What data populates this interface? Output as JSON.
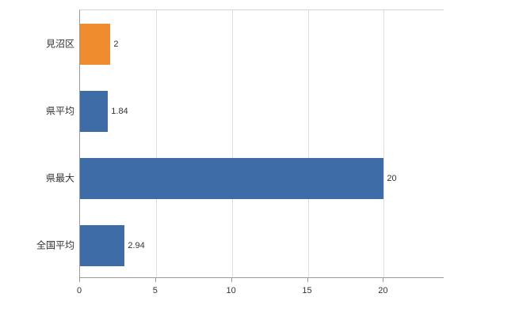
{
  "chart_data": {
    "type": "bar",
    "orientation": "horizontal",
    "categories": [
      "見沼区",
      "県平均",
      "県最大",
      "全国平均"
    ],
    "values": [
      2,
      1.84,
      20,
      2.94
    ],
    "value_labels": [
      "2",
      "1.84",
      "20",
      "2.94"
    ],
    "bar_colors": [
      "#ef8c2d",
      "#3d6ca6",
      "#3d6ca6",
      "#3d6ca6"
    ],
    "title": "",
    "xlabel": "",
    "ylabel": "",
    "xlim": [
      0,
      24
    ],
    "x_ticks": [
      0,
      5,
      10,
      15,
      20
    ],
    "x_tick_labels": [
      "0",
      "5",
      "10",
      "15",
      "20"
    ],
    "grid": "vertical-gridlines-on",
    "legend": "none",
    "colors": {
      "highlight_bar": "#ef8c2d",
      "default_bar": "#3d6ca6",
      "gridline": "#e0e0e0",
      "axis_line": "#9a9a9a",
      "text": "#333333",
      "background": "#ffffff"
    }
  }
}
